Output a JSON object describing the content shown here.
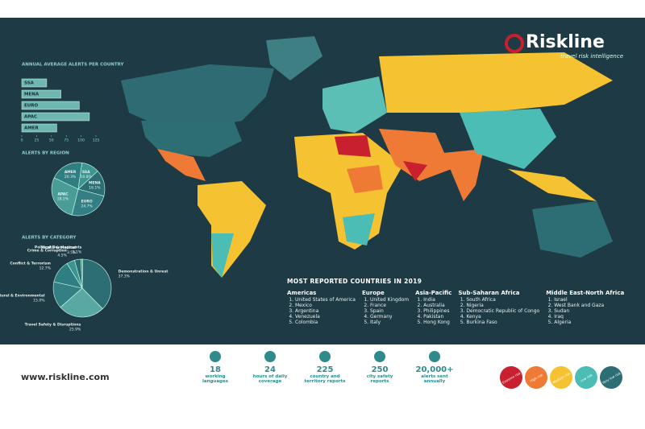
{
  "brand": {
    "name": "Riskline",
    "tagline": "travel risk intelligence"
  },
  "bar_chart": {
    "type": "bar",
    "title": "ANNUAL AVERAGE ALERTS PER COUNTRY",
    "categories": [
      "SSA",
      "MENA",
      "EURO",
      "APAC",
      "AMER"
    ],
    "values": [
      42,
      66,
      97,
      114,
      59
    ],
    "xlim": [
      0,
      125
    ],
    "xticks": [
      0,
      25,
      50,
      75,
      100,
      125
    ]
  },
  "region_pie": {
    "type": "pie",
    "title": "ALERTS BY REGION",
    "categories": [
      "AMER",
      "SSA",
      "MENA",
      "EURO",
      "APAC"
    ],
    "values": [
      20.3,
      10.8,
      16.1,
      24.7,
      28.2
    ],
    "value_labels": [
      "20.3%",
      "10.8%",
      "16.1%",
      "24.7%",
      "28.2%"
    ]
  },
  "category_pie": {
    "type": "pie",
    "title": "ALERTS BY CATEGORY",
    "categories": [
      "Political Developments",
      "Demonstration & Unrest",
      "Travel Safety & Disruptions",
      "Natural & Environmental",
      "Conflict & Terrorism",
      "Crime & Corruption",
      "Health & Medical"
    ],
    "values": [
      1.1,
      37.3,
      25.9,
      15.0,
      12.7,
      4.5,
      3.5
    ],
    "value_labels": [
      "1.1%",
      "37.3%",
      "25.9%",
      "15.0%",
      "12.7%",
      "4.5%",
      "3.5%"
    ]
  },
  "most_reported": {
    "title": "MOST REPORTED COUNTRIES IN 2019",
    "regions": [
      {
        "name": "Americas",
        "countries": [
          "United States of America",
          "Mexico",
          "Argentina",
          "Venezuela",
          "Colombia"
        ]
      },
      {
        "name": "Europe",
        "countries": [
          "United Kingdom",
          "France",
          "Spain",
          "Germany",
          "Italy"
        ]
      },
      {
        "name": "Asia-Pacific",
        "countries": [
          "India",
          "Australia",
          "Philippines",
          "Pakistan",
          "Hong Kong"
        ]
      },
      {
        "name": "Sub-Saharan Africa",
        "countries": [
          "South Africa",
          "Nigeria",
          "Democratic Republic of Congo",
          "Kenya",
          "Burkina Faso"
        ]
      },
      {
        "name": "Middle East-North Africa",
        "countries": [
          "Israel",
          "West Bank and Gaza",
          "Sudan",
          "Iraq",
          "Algeria"
        ]
      }
    ]
  },
  "footer": {
    "website": "www.riskline.com",
    "stats": [
      {
        "number": "18",
        "label": "working languages"
      },
      {
        "number": "24",
        "label": "hours of daily coverage"
      },
      {
        "number": "225",
        "label": "country and territory reports"
      },
      {
        "number": "250",
        "label": "city safety reports"
      },
      {
        "number": "20,000+",
        "label": "alerts sent annually"
      }
    ],
    "legend": [
      {
        "label": "Extreme risk",
        "color": "#c8202f"
      },
      {
        "label": "High risk",
        "color": "#ef7a35"
      },
      {
        "label": "Medium risk",
        "color": "#f5c231"
      },
      {
        "label": "Low risk",
        "color": "#4cbdb4"
      },
      {
        "label": "Very low risk",
        "color": "#2d6e74"
      }
    ]
  }
}
